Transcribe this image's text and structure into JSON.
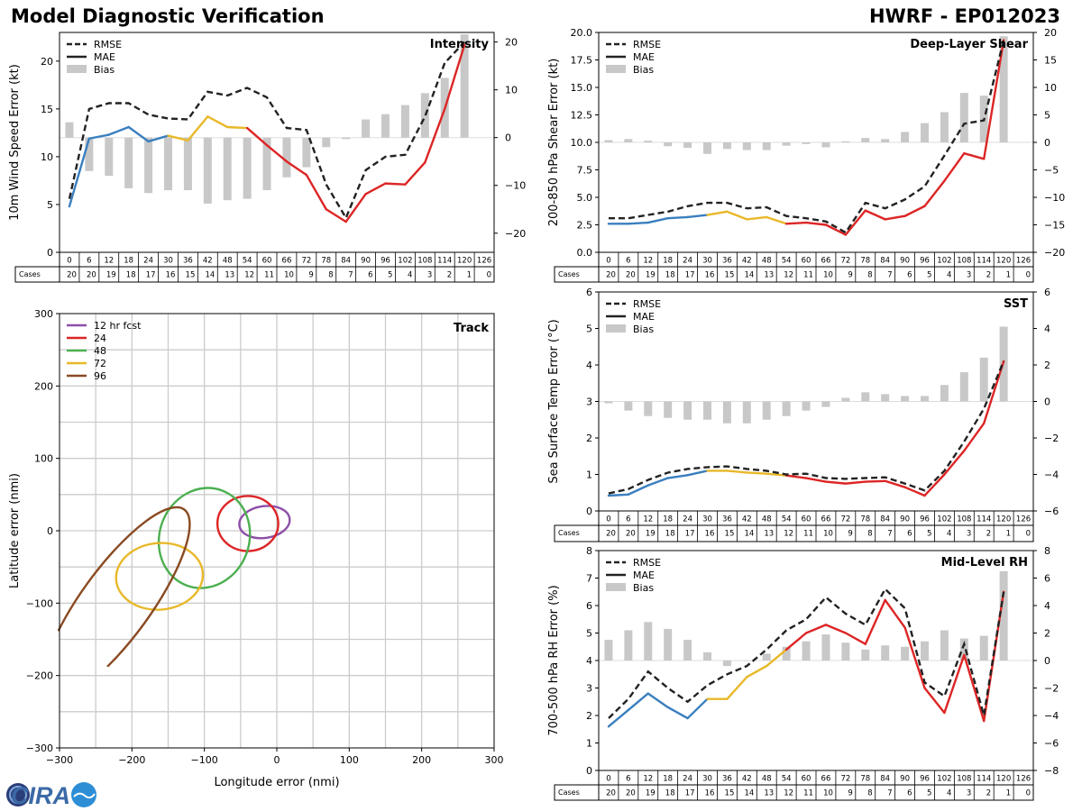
{
  "header": {
    "title": "Model Diagnostic Verification",
    "storm_id": "HWRF - EP012023"
  },
  "logo": {
    "text": "CIRA"
  },
  "colors": {
    "early": "#3a7fbf",
    "middle": "#e8b828",
    "late": "#dd2525",
    "rmse": "#222222",
    "bias": "#c8c8c8",
    "grid": "#cccccc",
    "track_12": "#8e4fa8",
    "track_24": "#dd2525",
    "track_48": "#4caf50",
    "track_72": "#e8b828",
    "track_96": "#8a4a22"
  },
  "chart_data": [
    {
      "id": "intensity",
      "type": "line",
      "title": "Intensity",
      "ylabel": "10m Wind Speed Error (kt)",
      "ylim": [
        0,
        23
      ],
      "yticks": [
        0,
        5,
        10,
        15,
        20
      ],
      "y2lim": [
        -24,
        22
      ],
      "y2ticks": [
        -20,
        -10,
        0,
        10,
        20
      ],
      "legend": [
        "RMSE",
        "MAE",
        "Bias"
      ],
      "x": [
        0,
        6,
        12,
        18,
        24,
        30,
        36,
        42,
        48,
        54,
        60,
        66,
        72,
        78,
        84,
        90,
        96,
        102,
        108,
        114,
        120,
        126
      ],
      "rmse": [
        5.6,
        15.0,
        15.6,
        15.6,
        14.4,
        14.0,
        13.9,
        16.8,
        16.4,
        17.2,
        16.2,
        13.0,
        12.8,
        7.1,
        3.6,
        8.6,
        10.0,
        10.2,
        14.2,
        19.8,
        22.0,
        null
      ],
      "mae": [
        4.8,
        11.9,
        12.3,
        13.1,
        11.6,
        12.2,
        11.7,
        14.2,
        13.1,
        13.0,
        11.2,
        9.5,
        8.1,
        4.5,
        3.2,
        6.1,
        7.2,
        7.1,
        9.4,
        15.0,
        21.7,
        null
      ],
      "bias": [
        3.2,
        -7.0,
        -8.0,
        -10.6,
        -11.6,
        -11.0,
        -11.0,
        -13.8,
        -13.1,
        -12.8,
        -11.0,
        -8.3,
        -6.2,
        -2.0,
        -0.3,
        3.8,
        4.9,
        6.8,
        9.3,
        12.5,
        21.6,
        null
      ],
      "cases": [
        20,
        20,
        19,
        18,
        17,
        16,
        15,
        14,
        13,
        12,
        11,
        10,
        9,
        8,
        7,
        6,
        5,
        4,
        3,
        2,
        1,
        0
      ]
    },
    {
      "id": "shear",
      "type": "line",
      "title": "Deep-Layer Shear",
      "ylabel": "200-850 hPa Shear Error (kt)",
      "ylim": [
        0,
        20
      ],
      "yticks": [
        0.0,
        2.5,
        5.0,
        7.5,
        10.0,
        12.5,
        15.0,
        17.5,
        20.0
      ],
      "y2lim": [
        -20,
        20
      ],
      "y2ticks": [
        -20,
        -15,
        -10,
        -5,
        0,
        5,
        10,
        15,
        20
      ],
      "legend": [
        "RMSE",
        "MAE",
        "Bias"
      ],
      "x": [
        0,
        6,
        12,
        18,
        24,
        30,
        36,
        42,
        48,
        54,
        60,
        66,
        72,
        78,
        84,
        90,
        96,
        102,
        108,
        114,
        120,
        126
      ],
      "rmse": [
        3.1,
        3.1,
        3.4,
        3.7,
        4.2,
        4.5,
        4.5,
        4.0,
        4.1,
        3.3,
        3.1,
        2.8,
        1.8,
        4.5,
        4.0,
        4.8,
        6.0,
        8.8,
        11.7,
        12.0,
        19.3,
        null
      ],
      "mae": [
        2.6,
        2.6,
        2.7,
        3.1,
        3.2,
        3.4,
        3.7,
        3.0,
        3.2,
        2.6,
        2.7,
        2.5,
        1.6,
        3.8,
        3.0,
        3.3,
        4.2,
        6.5,
        9.0,
        8.5,
        19.3,
        null
      ],
      "bias": [
        0.4,
        0.6,
        0.3,
        -0.7,
        -1.0,
        -2.1,
        -1.2,
        -1.4,
        -1.4,
        -0.6,
        -0.3,
        -0.9,
        0.2,
        0.8,
        0.6,
        1.9,
        3.5,
        5.5,
        9.0,
        8.5,
        19.3,
        null
      ],
      "cases": [
        20,
        20,
        19,
        18,
        17,
        16,
        15,
        14,
        13,
        12,
        11,
        10,
        9,
        8,
        7,
        6,
        5,
        4,
        3,
        2,
        1,
        0
      ]
    },
    {
      "id": "sst",
      "type": "line",
      "title": "SST",
      "ylabel": "Sea Surface Temp Error (°C)",
      "ylim": [
        0,
        6
      ],
      "yticks": [
        0,
        1,
        2,
        3,
        4,
        5,
        6
      ],
      "y2lim": [
        -6,
        6
      ],
      "y2ticks": [
        -6,
        -4,
        -2,
        0,
        2,
        4,
        6
      ],
      "legend": [
        "RMSE",
        "MAE",
        "Bias"
      ],
      "x": [
        0,
        6,
        12,
        18,
        24,
        30,
        36,
        42,
        48,
        54,
        60,
        66,
        72,
        78,
        84,
        90,
        96,
        102,
        108,
        114,
        120,
        126
      ],
      "rmse": [
        0.48,
        0.6,
        0.85,
        1.05,
        1.15,
        1.2,
        1.22,
        1.15,
        1.1,
        1.0,
        1.02,
        0.9,
        0.88,
        0.9,
        0.92,
        0.75,
        0.56,
        1.1,
        1.9,
        2.8,
        4.1,
        null
      ],
      "mae": [
        0.42,
        0.45,
        0.7,
        0.9,
        0.98,
        1.1,
        1.1,
        1.05,
        1.02,
        0.97,
        0.9,
        0.8,
        0.75,
        0.8,
        0.82,
        0.65,
        0.42,
        1.0,
        1.65,
        2.4,
        4.1,
        null
      ],
      "bias": [
        -0.1,
        -0.5,
        -0.8,
        -0.9,
        -1.0,
        -1.0,
        -1.2,
        -1.2,
        -1.0,
        -0.8,
        -0.5,
        -0.3,
        0.2,
        0.5,
        0.4,
        0.3,
        0.3,
        0.9,
        1.6,
        2.4,
        4.1,
        null
      ],
      "cases": [
        20,
        20,
        19,
        18,
        17,
        16,
        15,
        14,
        13,
        12,
        11,
        10,
        9,
        8,
        7,
        6,
        5,
        4,
        3,
        2,
        1,
        0
      ]
    },
    {
      "id": "rh",
      "type": "line",
      "title": "Mid-Level RH",
      "ylabel": "700-500 hPa RH Error (%)",
      "ylim": [
        0,
        8
      ],
      "yticks": [
        0,
        1,
        2,
        3,
        4,
        5,
        6,
        7,
        8
      ],
      "y2lim": [
        -8,
        8
      ],
      "y2ticks": [
        -8,
        -6,
        -4,
        -2,
        0,
        2,
        4,
        6,
        8
      ],
      "legend": [
        "RMSE",
        "MAE",
        "Bias"
      ],
      "x": [
        0,
        6,
        12,
        18,
        24,
        30,
        36,
        42,
        48,
        54,
        60,
        66,
        72,
        78,
        84,
        90,
        96,
        102,
        108,
        114,
        120,
        126
      ],
      "rmse": [
        1.9,
        2.6,
        3.6,
        3.0,
        2.5,
        3.1,
        3.5,
        3.8,
        4.4,
        5.1,
        5.5,
        6.3,
        5.7,
        5.3,
        6.6,
        5.9,
        3.2,
        2.7,
        4.6,
        2.0,
        6.5,
        null
      ],
      "mae": [
        1.6,
        2.2,
        2.8,
        2.3,
        1.9,
        2.6,
        2.6,
        3.4,
        3.8,
        4.4,
        5.0,
        5.3,
        5.0,
        4.6,
        6.2,
        5.2,
        3.0,
        2.1,
        4.2,
        1.8,
        6.5,
        null
      ],
      "bias": [
        1.5,
        2.2,
        2.8,
        2.3,
        1.5,
        0.6,
        -0.4,
        0.0,
        0.5,
        1.0,
        1.4,
        1.9,
        1.3,
        0.8,
        1.1,
        1.0,
        1.4,
        2.2,
        1.6,
        1.8,
        6.5,
        null
      ],
      "cases": [
        20,
        20,
        19,
        18,
        17,
        16,
        15,
        14,
        13,
        12,
        11,
        10,
        9,
        8,
        7,
        6,
        5,
        4,
        3,
        2,
        1,
        0
      ]
    },
    {
      "id": "track",
      "type": "scatter",
      "title": "Track",
      "xlabel": "Longitude error (nmi)",
      "ylabel": "Latitude error (nmi)",
      "xlim": [
        -300,
        300
      ],
      "ylim": [
        -300,
        300
      ],
      "xticks": [
        -300,
        -200,
        -100,
        0,
        100,
        200,
        300
      ],
      "yticks": [
        -300,
        -200,
        -100,
        0,
        100,
        200,
        300
      ],
      "ellipses": [
        {
          "label": "12 hr fcst",
          "cx": -17,
          "cy": 12,
          "rx": 35,
          "ry": 22,
          "angle": -8,
          "color_key": "track_12"
        },
        {
          "label": "24",
          "cx": -40,
          "cy": 10,
          "rx": 42,
          "ry": 38,
          "angle": 0,
          "color_key": "track_24"
        },
        {
          "label": "48",
          "cx": -100,
          "cy": -10,
          "rx": 62,
          "ry": 70,
          "angle": 20,
          "color_key": "track_48"
        },
        {
          "label": "72",
          "cx": -162,
          "cy": -63,
          "rx": 60,
          "ry": 46,
          "angle": -5,
          "color_key": "track_72"
        },
        {
          "label": "96",
          "cx": -222,
          "cy": -100,
          "rx": 160,
          "ry": 48,
          "angle": -54,
          "color_key": "track_96"
        }
      ]
    }
  ],
  "cases_label": "Cases"
}
